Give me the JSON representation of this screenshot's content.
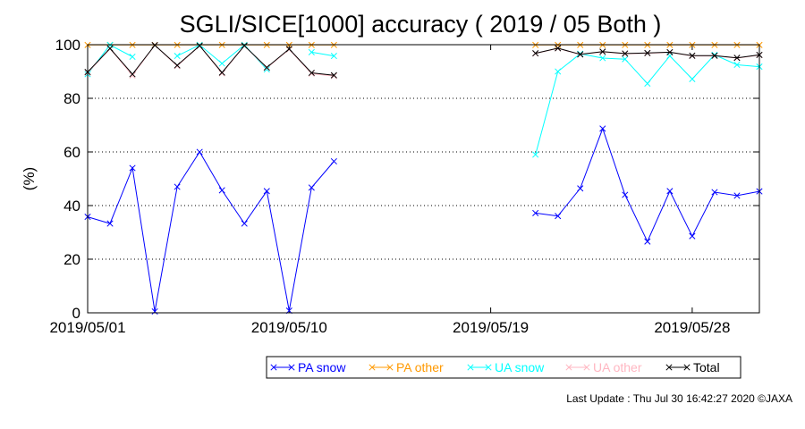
{
  "chart_data": {
    "type": "line",
    "title": "SGLI/SICE[1000] accuracy ( 2019 / 05 Both )",
    "xlabel": "",
    "ylabel": "(%)",
    "ylim": [
      0,
      100
    ],
    "y_ticks": [
      "0",
      "20",
      "40",
      "60",
      "80",
      "100"
    ],
    "x_ticks": [
      "2019/05/01",
      "2019/05/10",
      "2019/05/19",
      "2019/05/28"
    ],
    "x_tick_dates": [
      "2019-05-01",
      "2019-05-10",
      "2019-05-19",
      "2019-05-28"
    ],
    "x_range": [
      "2019-05-01",
      "2019-05-31"
    ],
    "grid": {
      "horizontal": "dotted",
      "vertical": "none"
    },
    "legend_position": "bottom-right",
    "series": [
      {
        "name": "PA snow",
        "color": "#0000ff",
        "x": [
          "2019-05-01",
          "2019-05-02",
          "2019-05-03",
          "2019-05-04",
          "2019-05-05",
          "2019-05-06",
          "2019-05-07",
          "2019-05-08",
          "2019-05-09",
          "2019-05-10",
          "2019-05-11",
          "2019-05-12",
          "2019-05-21",
          "2019-05-22",
          "2019-05-23",
          "2019-05-24",
          "2019-05-25",
          "2019-05-26",
          "2019-05-27",
          "2019-05-28",
          "2019-05-29",
          "2019-05-30",
          "2019-05-31"
        ],
        "values": [
          35.8,
          33.3,
          54.0,
          0.5,
          47.0,
          60.0,
          45.7,
          33.3,
          45.4,
          0.8,
          46.7,
          56.5,
          37.2,
          36.1,
          46.4,
          68.7,
          44.0,
          26.6,
          45.4,
          28.6,
          45.0,
          43.7,
          45.3
        ]
      },
      {
        "name": "PA other",
        "color": "#ff9900",
        "x": [
          "2019-05-01",
          "2019-05-02",
          "2019-05-03",
          "2019-05-04",
          "2019-05-05",
          "2019-05-06",
          "2019-05-07",
          "2019-05-08",
          "2019-05-09",
          "2019-05-10",
          "2019-05-11",
          "2019-05-12",
          "2019-05-21",
          "2019-05-22",
          "2019-05-23",
          "2019-05-24",
          "2019-05-25",
          "2019-05-26",
          "2019-05-27",
          "2019-05-28",
          "2019-05-29",
          "2019-05-30",
          "2019-05-31"
        ],
        "values": [
          99.9,
          99.9,
          99.9,
          99.9,
          99.9,
          99.9,
          99.9,
          99.9,
          99.9,
          99.9,
          99.9,
          99.9,
          99.9,
          99.9,
          99.9,
          99.9,
          99.9,
          99.9,
          99.9,
          99.9,
          99.9,
          99.9,
          99.9
        ]
      },
      {
        "name": "UA snow",
        "color": "#00ffff",
        "x": [
          "2019-05-01",
          "2019-05-02",
          "2019-05-03",
          "2019-05-05",
          "2019-05-06",
          "2019-05-07",
          "2019-05-08",
          "2019-05-09",
          "2019-05-11",
          "2019-05-12",
          "2019-05-21",
          "2019-05-22",
          "2019-05-23",
          "2019-05-24",
          "2019-05-25",
          "2019-05-26",
          "2019-05-27",
          "2019-05-28",
          "2019-05-29",
          "2019-05-30",
          "2019-05-31"
        ],
        "values": [
          89.0,
          99.9,
          95.5,
          95.8,
          99.9,
          93.0,
          99.9,
          90.8,
          97.2,
          95.8,
          59.0,
          90.0,
          96.6,
          95.0,
          94.6,
          85.5,
          95.8,
          87.2,
          96.2,
          92.5,
          91.8
        ]
      },
      {
        "name": "UA other",
        "color": "#ffb6c1",
        "x": [
          "2019-05-01",
          "2019-05-02",
          "2019-05-03",
          "2019-05-04",
          "2019-05-05",
          "2019-05-06",
          "2019-05-07",
          "2019-05-08",
          "2019-05-09",
          "2019-05-10",
          "2019-05-11",
          "2019-05-12",
          "2019-05-21",
          "2019-05-22",
          "2019-05-23",
          "2019-05-24",
          "2019-05-25",
          "2019-05-26",
          "2019-05-27",
          "2019-05-28",
          "2019-05-29",
          "2019-05-30",
          "2019-05-31"
        ],
        "values": [
          89.5,
          98.5,
          88.5,
          99.8,
          92.0,
          99.6,
          89.3,
          99.6,
          91.3,
          98.2,
          89.2,
          88.3,
          96.7,
          98.6,
          96.3,
          97.3,
          96.6,
          96.8,
          97.1,
          95.8,
          95.8,
          95.0,
          96.1
        ]
      },
      {
        "name": "Total",
        "color": "#000000",
        "x": [
          "2019-05-01",
          "2019-05-02",
          "2019-05-03",
          "2019-05-04",
          "2019-05-05",
          "2019-05-06",
          "2019-05-07",
          "2019-05-08",
          "2019-05-09",
          "2019-05-10",
          "2019-05-11",
          "2019-05-12",
          "2019-05-21",
          "2019-05-22",
          "2019-05-23",
          "2019-05-24",
          "2019-05-25",
          "2019-05-26",
          "2019-05-27",
          "2019-05-28",
          "2019-05-29",
          "2019-05-30",
          "2019-05-31"
        ],
        "values": [
          89.8,
          98.6,
          89.0,
          99.8,
          92.3,
          99.6,
          89.6,
          99.6,
          91.5,
          98.4,
          89.5,
          88.6,
          96.8,
          98.7,
          96.4,
          97.4,
          96.7,
          96.9,
          97.2,
          95.9,
          95.9,
          95.1,
          96.2
        ]
      }
    ]
  },
  "footer": {
    "last_update": "Last Update : Thu Jul 30 16:42:27 2020  ©JAXA"
  }
}
